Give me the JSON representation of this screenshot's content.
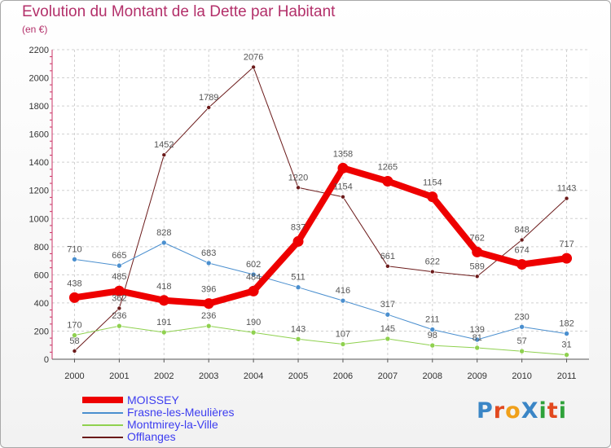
{
  "header": {
    "title": "Evolution du Montant de la Dette par Habitant",
    "subtitle": "(en €)"
  },
  "logo": {
    "text": "ProXiti",
    "letter_colors": [
      "#3b86c6",
      "#e2491f",
      "#f0a01a",
      "#3b86c6",
      "#2fa23a",
      "#e2491f",
      "#2fa23a"
    ]
  },
  "chart_data": {
    "type": "line",
    "x": [
      "2000",
      "2001",
      "2002",
      "2003",
      "2004",
      "2005",
      "2006",
      "2007",
      "2008",
      "2009",
      "2010",
      "2011"
    ],
    "ylim": [
      0,
      2200
    ],
    "yticks": [
      "0",
      "200",
      "400",
      "600",
      "800",
      "1000",
      "1200",
      "1400",
      "1600",
      "1800",
      "2000",
      "2200"
    ],
    "grid": true,
    "legend_position": "bottom-left",
    "series": [
      {
        "name": "Offlanges",
        "color": "#6b1a1a",
        "width": 1,
        "marker": 2.5,
        "values": [
          58,
          362,
          1452,
          1789,
          2076,
          1220,
          1154,
          661,
          622,
          589,
          848,
          1143
        ],
        "labels": [
          "58",
          "362",
          "1452",
          "1789",
          "2076",
          "1220",
          "1154",
          "661",
          "622",
          "589",
          "848",
          "1143"
        ]
      },
      {
        "name": "Montmirey-la-Ville",
        "color": "#8fd14f",
        "width": 1,
        "marker": 3,
        "values": [
          170,
          236,
          191,
          236,
          190,
          143,
          107,
          145,
          98,
          81,
          57,
          31
        ],
        "labels": [
          "170",
          "236",
          "191",
          "236",
          "190",
          "143",
          "107",
          "145",
          "98",
          "81",
          "57",
          "31"
        ]
      },
      {
        "name": "Frasne-les-Meulières",
        "color": "#4a8fcf",
        "width": 1,
        "marker": 3,
        "values": [
          710,
          665,
          828,
          683,
          602,
          511,
          416,
          317,
          211,
          139,
          230,
          182
        ],
        "labels": [
          "710",
          "665",
          "828",
          "683",
          "602",
          "511",
          "416",
          "317",
          "211",
          "139",
          "230",
          "182"
        ]
      },
      {
        "name": "MOISSEY",
        "color": "#ee0000",
        "width": 8,
        "marker": 6.5,
        "values": [
          438,
          485,
          418,
          396,
          484,
          837,
          1358,
          1265,
          1154,
          762,
          674,
          717
        ],
        "labels": [
          "438",
          "485",
          "418",
          "396",
          "484",
          "837",
          "1358",
          "1265",
          "1154",
          "762",
          "674",
          "717"
        ]
      }
    ],
    "legend": [
      "MOISSEY",
      "Frasne-les-Meulières",
      "Montmirey-la-Ville",
      "Offlanges"
    ]
  }
}
